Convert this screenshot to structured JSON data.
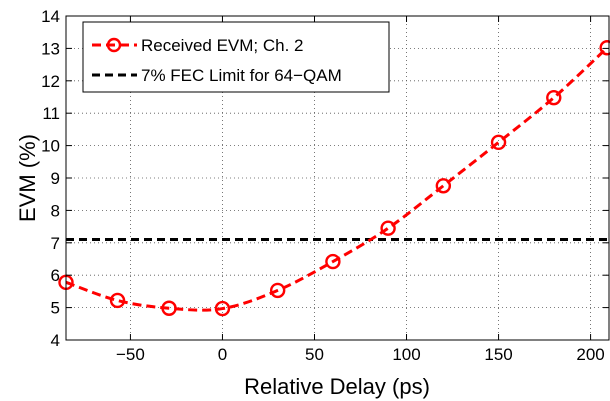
{
  "chart_data": {
    "type": "line",
    "title": "",
    "xlabel": "Relative Delay (ps)",
    "ylabel": "EVM (%)",
    "xlim": [
      -85,
      210
    ],
    "ylim": [
      4,
      14
    ],
    "x_ticks": [
      -50,
      0,
      50,
      100,
      150,
      200
    ],
    "y_ticks": [
      4,
      5,
      6,
      7,
      8,
      9,
      10,
      11,
      12,
      13,
      14
    ],
    "x_tick_labels": [
      "−50",
      "0",
      "50",
      "100",
      "150",
      "200"
    ],
    "y_tick_labels": [
      "4",
      "5",
      "6",
      "7",
      "8",
      "9",
      "10",
      "11",
      "12",
      "13",
      "14"
    ],
    "grid": true,
    "legend_position": "top-left",
    "series": [
      {
        "name": "Received EVM; Ch. 2",
        "color": "#ff0000",
        "line_style": "dashed",
        "marker": "circle",
        "x": [
          -85,
          -57,
          -29,
          0,
          30,
          60,
          90,
          120,
          150,
          180,
          209
        ],
        "y": [
          5.78,
          5.22,
          4.98,
          4.97,
          5.53,
          6.42,
          7.45,
          8.76,
          10.1,
          11.48,
          13.02
        ]
      },
      {
        "name": "7% FEC Limit for 64−QAM",
        "color": "#000000",
        "line_style": "dashed",
        "marker": "none",
        "x": [
          -85,
          210
        ],
        "y": [
          7.1,
          7.1
        ]
      }
    ]
  }
}
